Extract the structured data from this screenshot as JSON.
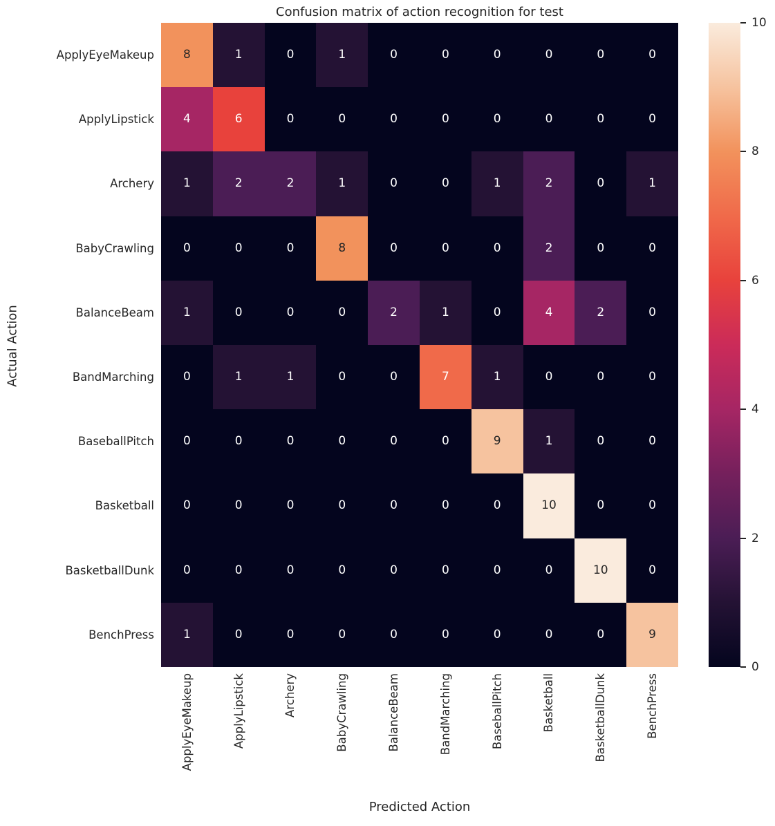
{
  "figure": {
    "title": "Confusion matrix of action recognition for test",
    "xlabel": "Predicted Action",
    "ylabel": "Actual Action"
  },
  "colors": {
    "background": "#ffffff",
    "label_text": "#262626"
  },
  "chart_data": {
    "type": "heatmap",
    "title": "Confusion matrix of action recognition for test",
    "xlabel": "Predicted Action",
    "ylabel": "Actual Action",
    "x_categories": [
      "ApplyEyeMakeup",
      "ApplyLipstick",
      "Archery",
      "BabyCrawling",
      "BalanceBeam",
      "BandMarching",
      "BaseballPitch",
      "Basketball",
      "BasketballDunk",
      "BenchPress"
    ],
    "y_categories": [
      "ApplyEyeMakeup",
      "ApplyLipstick",
      "Archery",
      "BabyCrawling",
      "BalanceBeam",
      "BandMarching",
      "BaseballPitch",
      "Basketball",
      "BasketballDunk",
      "BenchPress"
    ],
    "matrix": [
      [
        8,
        1,
        0,
        1,
        0,
        0,
        0,
        0,
        0,
        0
      ],
      [
        4,
        6,
        0,
        0,
        0,
        0,
        0,
        0,
        0,
        0
      ],
      [
        1,
        2,
        2,
        1,
        0,
        0,
        1,
        2,
        0,
        1
      ],
      [
        0,
        0,
        0,
        8,
        0,
        0,
        0,
        2,
        0,
        0
      ],
      [
        1,
        0,
        0,
        0,
        2,
        1,
        0,
        4,
        2,
        0
      ],
      [
        0,
        1,
        1,
        0,
        0,
        7,
        1,
        0,
        0,
        0
      ],
      [
        0,
        0,
        0,
        0,
        0,
        0,
        9,
        1,
        0,
        0
      ],
      [
        0,
        0,
        0,
        0,
        0,
        0,
        0,
        10,
        0,
        0
      ],
      [
        0,
        0,
        0,
        0,
        0,
        0,
        0,
        0,
        10,
        0
      ],
      [
        1,
        0,
        0,
        0,
        0,
        0,
        0,
        0,
        0,
        9
      ]
    ],
    "vmin": 0,
    "vmax": 10,
    "colormap": "rocket",
    "colormap_stops": [
      "#04051E",
      "#241234",
      "#4B1D55",
      "#75205C",
      "#A62664",
      "#CB2B59",
      "#E8423C",
      "#F06A4A",
      "#F2925C",
      "#F6C39F",
      "#FAEBDD"
    ],
    "colorbar_ticks": [
      0,
      2,
      4,
      6,
      8,
      10
    ],
    "colorbar_position": "right",
    "grid": false,
    "annotation": {
      "light_text_color": "#ffffff",
      "dark_text_color": "#262626",
      "dark_text_min_value": 8
    }
  }
}
